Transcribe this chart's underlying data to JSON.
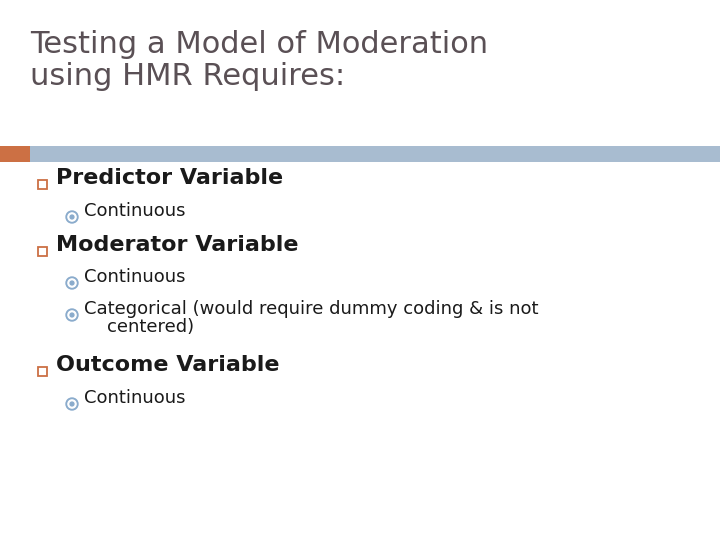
{
  "title_line1": "Testing a Model of Moderation",
  "title_line2": "using HMR Requires:",
  "title_color": "#5a5055",
  "title_fontsize": 22,
  "bg_color": "#ffffff",
  "header_bar_color": "#a8bcd0",
  "header_bar_left_color": "#cc7044",
  "bullet1_text": "Predictor Variable",
  "bullet1_sub": [
    "Continuous"
  ],
  "bullet2_text": "Moderator Variable",
  "bullet2_sub_a": "Continuous",
  "bullet2_sub_b1": "Categorical (would require dummy coding & is not",
  "bullet2_sub_b2": "    centered)",
  "bullet3_text": "Outcome Variable",
  "bullet3_sub": [
    "Continuous"
  ],
  "bullet_color": "#1a1a1a",
  "main_bullet_fontsize": 16,
  "sub_bullet_fontsize": 13,
  "bullet_square_edge_color": "#cc7044",
  "sub_bullet_circle_color": "#8aabcc"
}
